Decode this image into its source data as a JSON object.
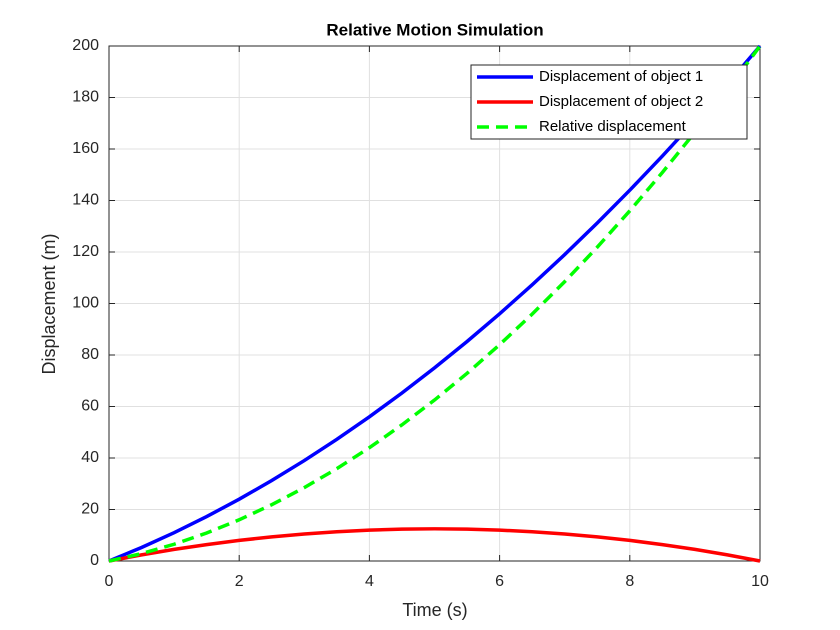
{
  "chart_data": {
    "type": "line",
    "title": "Relative Motion Simulation",
    "x_label": "Time (s)",
    "y_label": "Displacement (m)",
    "x": [
      0,
      0.5,
      1,
      1.5,
      2,
      2.5,
      3,
      3.5,
      4,
      4.5,
      5,
      5.5,
      6,
      6.5,
      7,
      7.5,
      8,
      8.5,
      9,
      9.5,
      10
    ],
    "series": [
      {
        "name": "Displacement of object 1",
        "color": "#0000ff",
        "linestyle": "solid",
        "values": [
          0,
          5.25,
          11,
          17.25,
          24,
          31.25,
          39,
          47.25,
          56,
          65.25,
          75,
          85.25,
          96,
          107.25,
          119,
          131.25,
          144,
          157.25,
          171,
          185.25,
          200
        ]
      },
      {
        "name": "Displacement of object 2",
        "color": "#ff0000",
        "linestyle": "solid",
        "values": [
          0,
          2.375,
          4.5,
          6.375,
          8,
          9.375,
          10.5,
          11.375,
          12,
          12.375,
          12.5,
          12.375,
          12,
          11.375,
          10.5,
          9.375,
          8,
          6.375,
          4.5,
          2.375,
          0
        ]
      },
      {
        "name": "Relative displacement",
        "color": "#00ff00",
        "linestyle": "dashed",
        "values": [
          0,
          2.875,
          6.5,
          10.875,
          16,
          21.875,
          28.5,
          35.875,
          44,
          52.875,
          62.5,
          72.875,
          84,
          95.875,
          108.5,
          121.875,
          136,
          150.875,
          166.5,
          182.875,
          200
        ]
      }
    ],
    "xlim": [
      0,
      10
    ],
    "xticks": [
      0,
      2,
      4,
      6,
      8,
      10
    ],
    "ylim": [
      0,
      200
    ],
    "yticks": [
      0,
      20,
      40,
      60,
      80,
      100,
      120,
      140,
      160,
      180,
      200
    ],
    "grid": true,
    "legend": "northeast"
  }
}
